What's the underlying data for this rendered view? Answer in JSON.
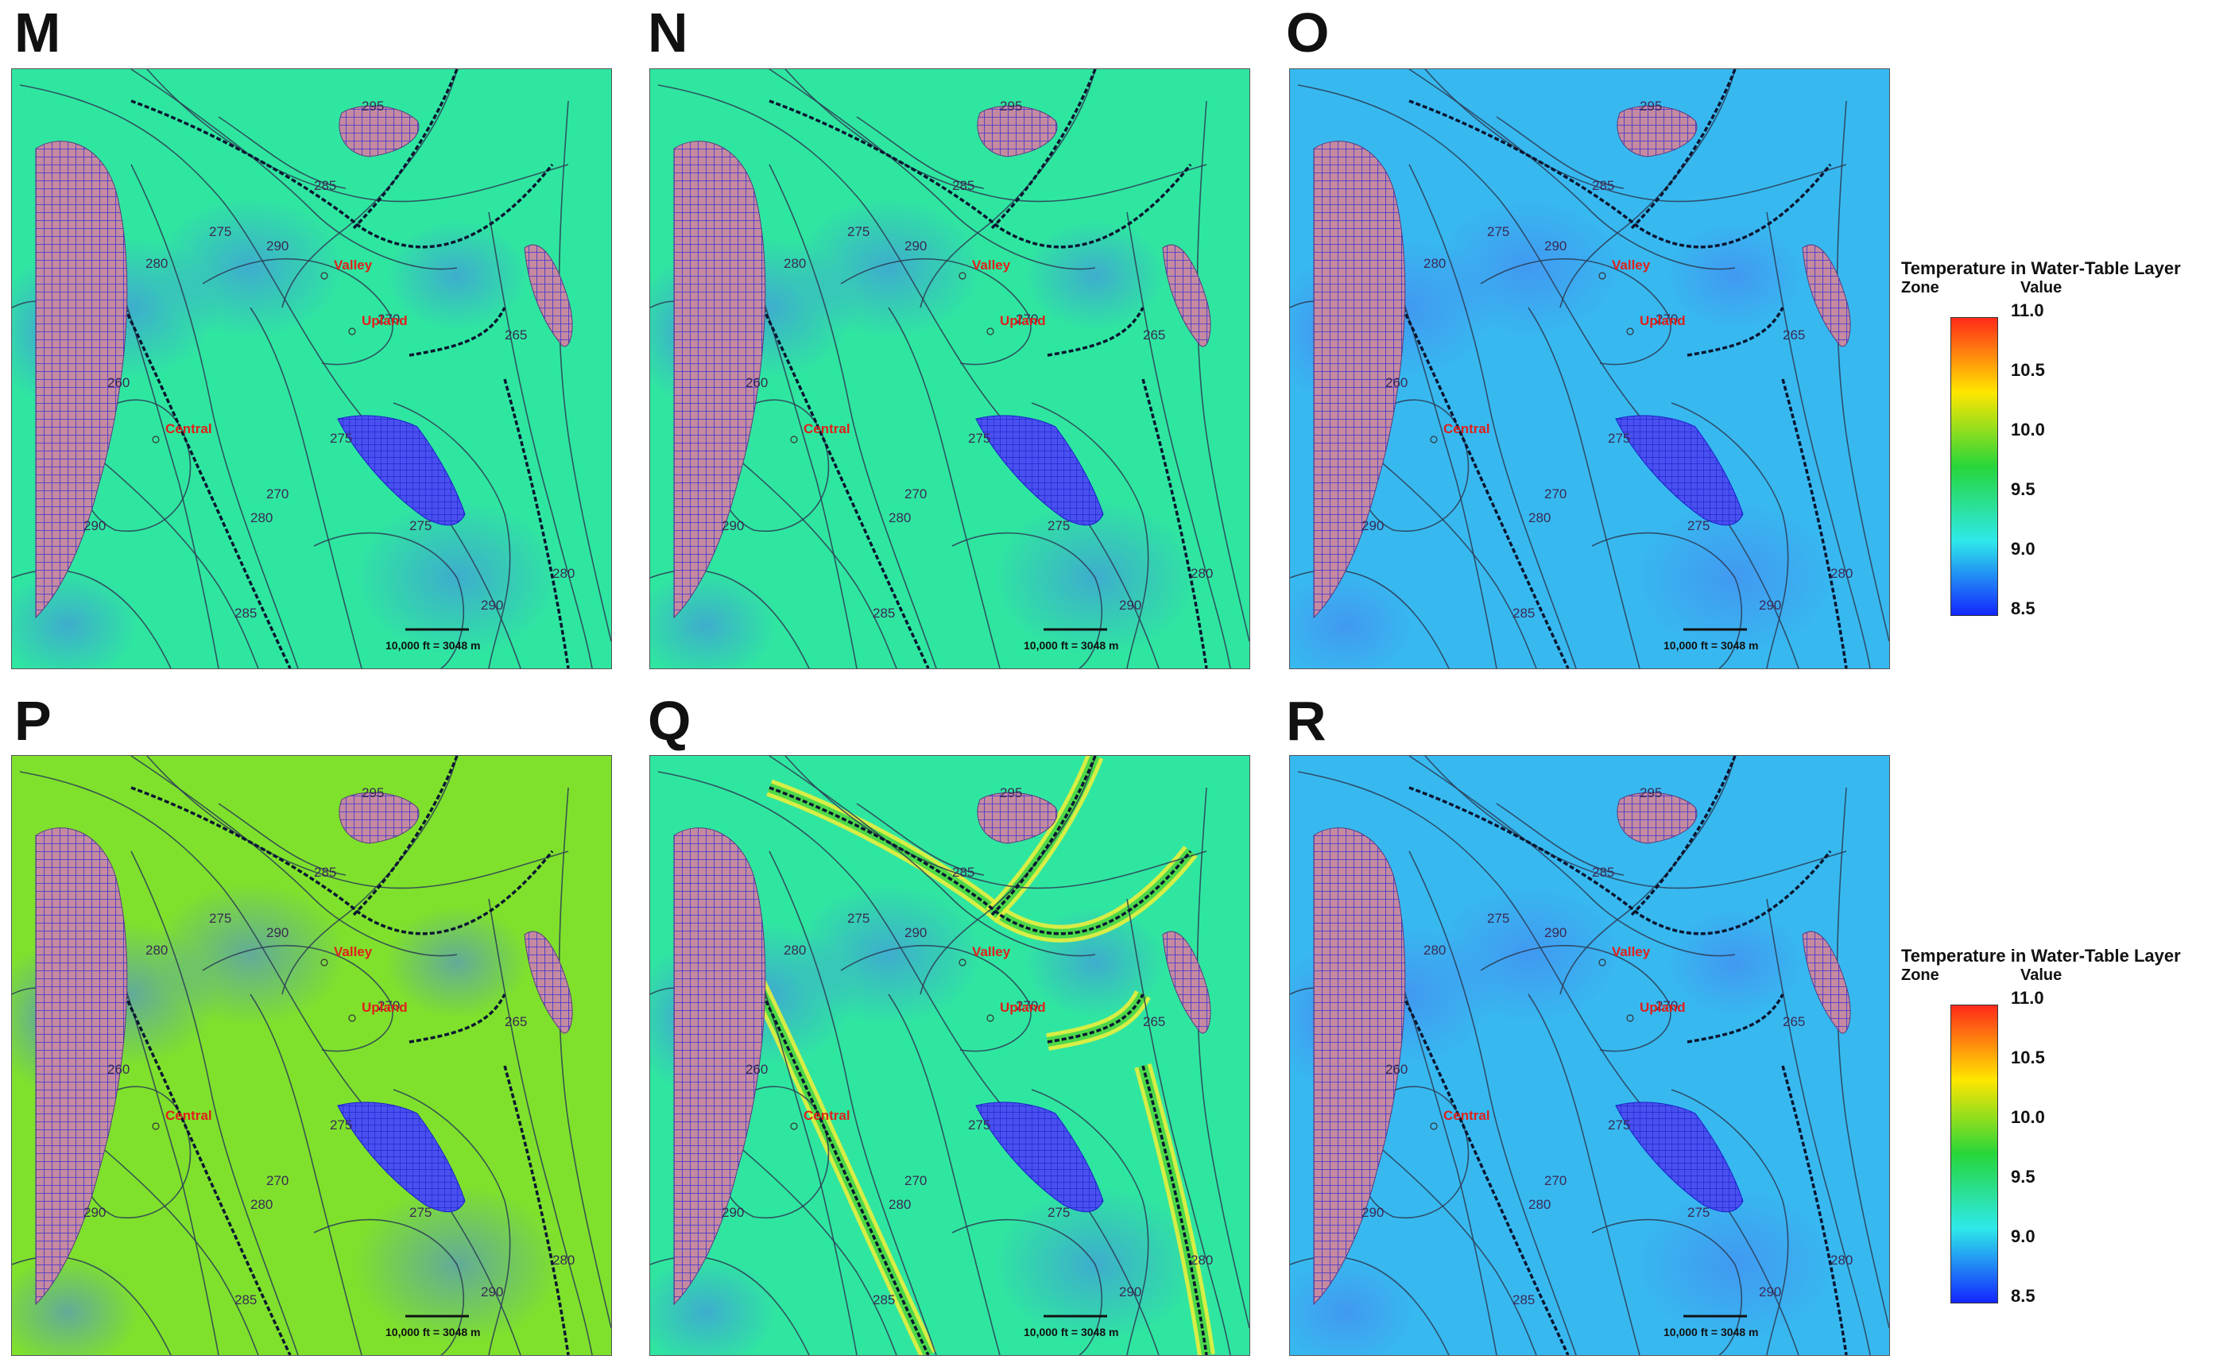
{
  "colors": {
    "legend_ramp": [
      "#ff2a1a",
      "#ffe600",
      "#27d63a",
      "#2ee9ea",
      "#1426ff"
    ],
    "map_base_default": "#2fe6a0",
    "map_base_warm": "#7fe12c",
    "map_base_cool": "#37b9f0",
    "contour": "#2b3c55",
    "hatch_fill": "#c68aa0",
    "hatch_lines": "#3a33d0",
    "label": "#e0201a"
  },
  "panels": [
    {
      "letter": "M",
      "scheme": "default"
    },
    {
      "letter": "N",
      "scheme": "default"
    },
    {
      "letter": "O",
      "scheme": "cool"
    },
    {
      "letter": "P",
      "scheme": "warm"
    },
    {
      "letter": "Q",
      "scheme": "banded"
    },
    {
      "letter": "R",
      "scheme": "cool"
    }
  ],
  "map": {
    "site_labels": [
      "Valley",
      "Upland",
      "Central"
    ],
    "scale_bar": "10,000 ft = 3048 m",
    "contour_labels": [
      "295",
      "290",
      "285",
      "280",
      "275",
      "270",
      "265",
      "260",
      "280",
      "275",
      "290",
      "285",
      "270",
      "280",
      "275",
      "290"
    ]
  },
  "legend": {
    "title": "Temperature in Water-Table Layer",
    "zone_label": "Zone",
    "value_label": "Value",
    "ticks": [
      "11.0",
      "10.5",
      "10.0",
      "9.5",
      "9.0",
      "8.5"
    ]
  }
}
